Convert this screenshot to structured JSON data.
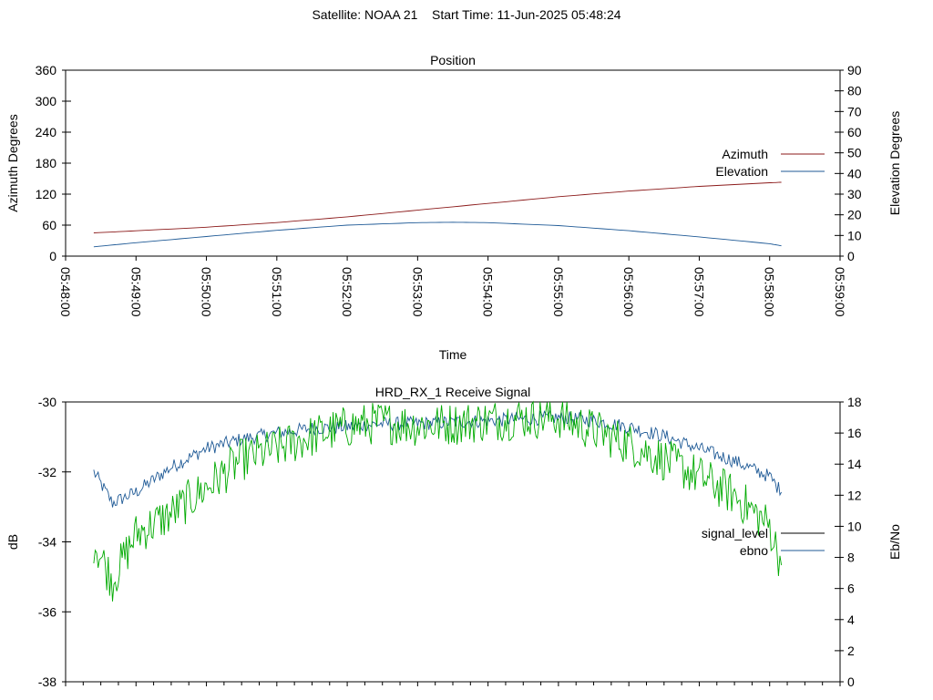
{
  "figure": {
    "title": "Satellite: NOAA 21    Start Time: 11-Jun-2025 05:48:24"
  },
  "chart_data": [
    {
      "type": "line",
      "title": "Position",
      "xlabel": "Time",
      "ylabel": "Azimuth Degrees",
      "y2label": "Elevation Degrees",
      "xlim": [
        "05:48:00",
        "05:59:00"
      ],
      "xticks": [
        "05:48:00",
        "05:49:00",
        "05:50:00",
        "05:51:00",
        "05:52:00",
        "05:53:00",
        "05:54:00",
        "05:55:00",
        "05:56:00",
        "05:57:00",
        "05:58:00",
        "05:59:00"
      ],
      "ylim": [
        0,
        360
      ],
      "yticks": [
        0,
        60,
        120,
        180,
        240,
        300,
        360
      ],
      "y2lim": [
        0,
        90
      ],
      "y2ticks": [
        0,
        10,
        20,
        30,
        40,
        50,
        60,
        70,
        80,
        90
      ],
      "legend_position": "right",
      "grid": false,
      "series": [
        {
          "name": "Azimuth",
          "axis": "left",
          "color": "#8b1a1a",
          "x": [
            "05:48:24",
            "05:49:00",
            "05:50:00",
            "05:51:00",
            "05:52:00",
            "05:53:00",
            "05:54:00",
            "05:55:00",
            "05:56:00",
            "05:57:00",
            "05:58:00",
            "05:58:10"
          ],
          "values": [
            45,
            49,
            56,
            65,
            76,
            89,
            102,
            115,
            126,
            135,
            142,
            143
          ]
        },
        {
          "name": "Elevation",
          "axis": "right",
          "color": "#1f5a96",
          "x": [
            "05:48:24",
            "05:49:00",
            "05:50:00",
            "05:51:00",
            "05:52:00",
            "05:53:00",
            "05:53:30",
            "05:54:00",
            "05:55:00",
            "05:56:00",
            "05:57:00",
            "05:58:00",
            "05:58:10"
          ],
          "values": [
            4.5,
            6.5,
            9.5,
            12.5,
            15,
            16.2,
            16.4,
            16.2,
            14.8,
            12.3,
            9.3,
            6,
            5
          ]
        }
      ]
    },
    {
      "type": "line",
      "title": "HRD_RX_1 Receive Signal",
      "ylabel": "dB",
      "y2label": "Eb/No",
      "xlim": [
        "05:48:00",
        "05:59:00"
      ],
      "ylim": [
        -38,
        -30
      ],
      "yticks": [
        -38,
        -36,
        -34,
        -32,
        -30
      ],
      "y2lim": [
        0,
        18
      ],
      "y2ticks": [
        0,
        2,
        4,
        6,
        8,
        10,
        12,
        14,
        16,
        18
      ],
      "legend_position": "right",
      "grid": false,
      "series": [
        {
          "name": "signal_level",
          "axis": "left",
          "color": "#000000",
          "x": [],
          "values": []
        },
        {
          "name": "ebno",
          "axis": "right",
          "color": "#1f5a96",
          "x": [
            "05:48:24",
            "05:48:40",
            "05:49:00",
            "05:49:30",
            "05:50:00",
            "05:50:30",
            "05:51:00",
            "05:51:30",
            "05:52:00",
            "05:52:30",
            "05:53:00",
            "05:53:30",
            "05:54:00",
            "05:54:30",
            "05:55:00",
            "05:55:30",
            "05:56:00",
            "05:56:30",
            "05:57:00",
            "05:57:30",
            "05:58:00",
            "05:58:10"
          ],
          "values": [
            13.5,
            11.5,
            12.2,
            13.8,
            15.0,
            15.6,
            16.0,
            16.3,
            16.4,
            16.6,
            16.6,
            16.7,
            16.8,
            16.9,
            17.0,
            16.8,
            16.4,
            15.8,
            15.0,
            14.2,
            13.2,
            12.2
          ]
        },
        {
          "name": "",
          "axis": "right",
          "color": "#00aa00",
          "x": [
            "05:48:24",
            "05:48:40",
            "05:49:00",
            "05:49:30",
            "05:50:00",
            "05:50:30",
            "05:51:00",
            "05:51:30",
            "05:52:00",
            "05:52:30",
            "05:53:00",
            "05:53:30",
            "05:54:00",
            "05:54:30",
            "05:55:00",
            "05:55:30",
            "05:56:00",
            "05:56:30",
            "05:57:00",
            "05:57:30",
            "05:58:00",
            "05:58:10"
          ],
          "values": [
            9.0,
            6.5,
            9.5,
            10.8,
            12.5,
            14.3,
            15.0,
            15.8,
            16.4,
            16.7,
            16.5,
            16.6,
            16.8,
            17.0,
            17.0,
            16.2,
            15.3,
            14.3,
            13.2,
            12.0,
            10.0,
            7.5
          ]
        }
      ]
    }
  ]
}
